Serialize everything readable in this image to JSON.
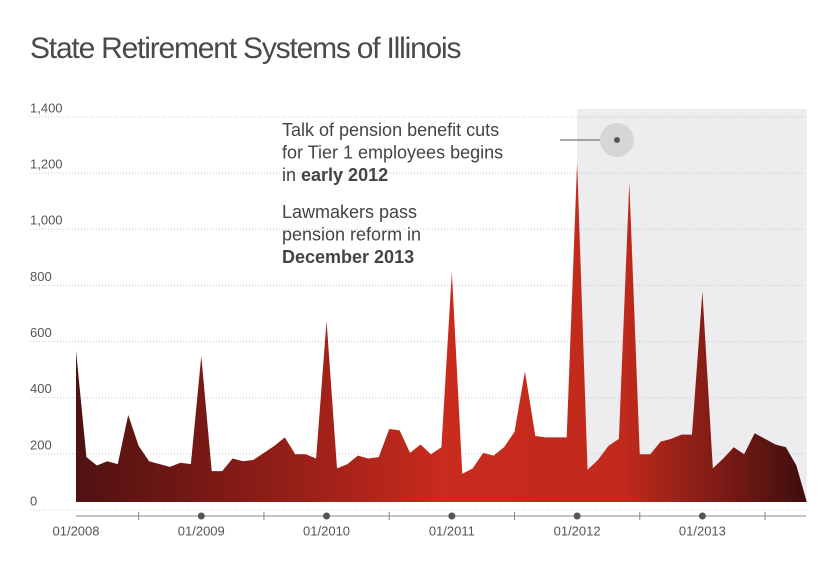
{
  "chart_data": {
    "type": "area",
    "title": "State Retirement Systems of Illinois",
    "categories": [
      "01/2008",
      null,
      null,
      null,
      null,
      null,
      null,
      null,
      null,
      null,
      null,
      null,
      "01/2009",
      null,
      null,
      null,
      null,
      null,
      null,
      null,
      null,
      null,
      null,
      null,
      "01/2010",
      null,
      null,
      null,
      null,
      null,
      null,
      null,
      null,
      null,
      null,
      null,
      "01/2011",
      null,
      null,
      null,
      null,
      null,
      null,
      null,
      null,
      null,
      null,
      null,
      "01/2012",
      null,
      null,
      null,
      null,
      null,
      null,
      null,
      null,
      null,
      null,
      null,
      "01/2013",
      null,
      null,
      null,
      null,
      null,
      null,
      null,
      null,
      null,
      null
    ],
    "values": [
      540,
      160,
      130,
      145,
      135,
      310,
      200,
      145,
      135,
      125,
      140,
      135,
      520,
      110,
      110,
      155,
      145,
      150,
      175,
      200,
      230,
      170,
      170,
      155,
      645,
      120,
      135,
      165,
      155,
      160,
      260,
      255,
      175,
      205,
      170,
      195,
      820,
      100,
      120,
      175,
      165,
      195,
      250,
      465,
      235,
      230,
      230,
      230,
      1210,
      115,
      150,
      200,
      225,
      1140,
      170,
      170,
      215,
      225,
      240,
      240,
      750,
      120,
      155,
      195,
      170,
      245,
      225,
      205,
      195,
      130,
      0
    ],
    "colors": [
      "#4e1212",
      "#8a1c16",
      "#c92b1d",
      "#c02a1c",
      "#3e0e0e"
    ],
    "ylim": [
      0,
      1400
    ],
    "yticks": [
      0,
      200,
      400,
      600,
      800,
      {
        "value": 1000,
        "label": "1,000"
      },
      {
        "value": 1200,
        "label": "1,200"
      },
      {
        "value": 1400,
        "label": "1,400"
      }
    ],
    "grid": true,
    "shaded_from": "01/2012",
    "annotations": [
      {
        "lines": [
          [
            {
              "text": "Talk of pension benefit cuts",
              "bold": false
            }
          ],
          [
            {
              "text": "for Tier 1 employees begins",
              "bold": false
            }
          ],
          [
            {
              "text": "in",
              "bold": false
            },
            {
              "text": "early 2012",
              "bold": true
            }
          ]
        ]
      },
      {
        "lines": [
          [
            {
              "text": "Lawmakers pass",
              "bold": false
            }
          ],
          [
            {
              "text": "pension reform in",
              "bold": false
            }
          ],
          [
            {
              "text": "December 2013",
              "bold": true
            }
          ]
        ]
      }
    ]
  }
}
